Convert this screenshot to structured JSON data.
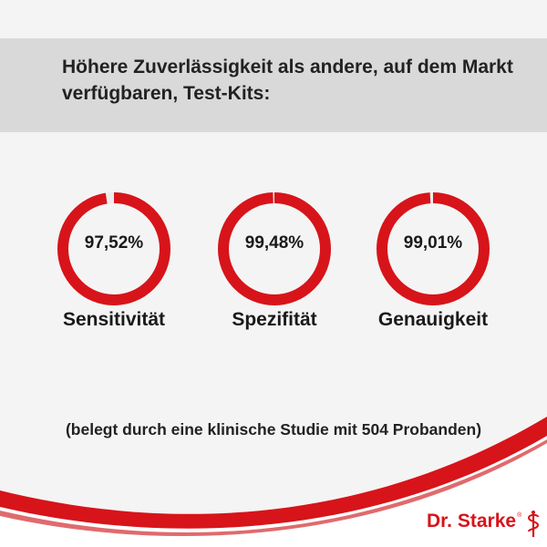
{
  "header": {
    "title": "Höhere Zuverlässigkeit als andere, auf dem Markt verfügbaren, Test-Kits:"
  },
  "chart_data": {
    "type": "donut",
    "items": [
      {
        "label": "Sensitivität",
        "value": 97.52,
        "display": "97,52%"
      },
      {
        "label": "Spezifität",
        "value": 99.48,
        "display": "99,48%"
      },
      {
        "label": "Genauigkeit",
        "value": 99.01,
        "display": "99,01%"
      }
    ]
  },
  "footnote": "(belegt durch eine klinische Studie mit 504 Probanden)",
  "brand": {
    "name": "Dr. Starke",
    "registered": "®",
    "icon": "caduceus-icon"
  },
  "colors": {
    "accent": "#d7141a",
    "header_bg": "#d9d9d9",
    "page_bg": "#f4f4f4"
  }
}
